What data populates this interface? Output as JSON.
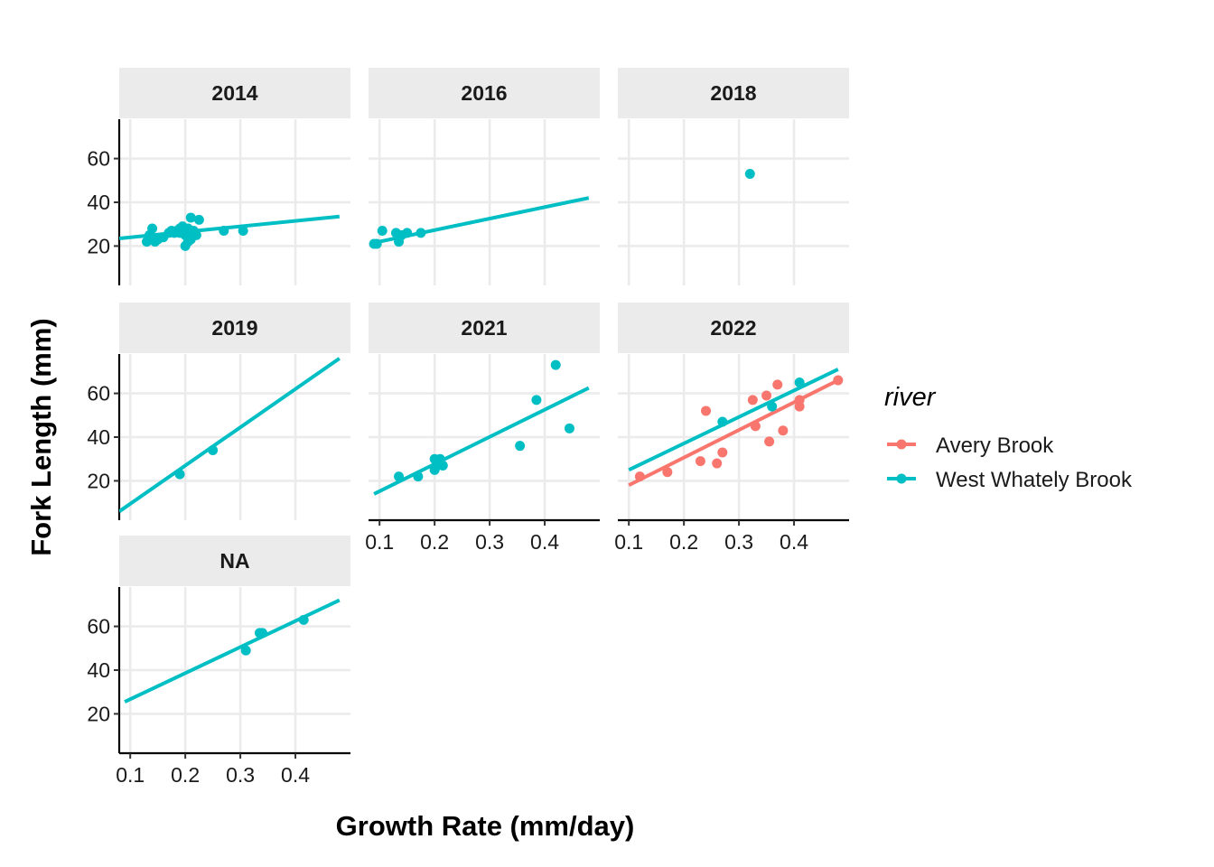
{
  "chart_data": {
    "type": "scatter",
    "xlabel": "Growth Rate (mm/day)",
    "ylabel": "Fork Length (mm)",
    "xlim": [
      0.08,
      0.5
    ],
    "ylim": [
      2,
      78
    ],
    "xticks": [
      0.1,
      0.2,
      0.3,
      0.4
    ],
    "xtick_labels": [
      "0.1",
      "0.2",
      "0.3",
      "0.4"
    ],
    "yticks": [
      20,
      40,
      60
    ],
    "ytick_labels": [
      "20",
      "40",
      "60"
    ],
    "grid": true,
    "colors": {
      "Avery Brook": "#F8766D",
      "West Whately Brook": "#00BFC4"
    },
    "legend": {
      "title": "river",
      "position": "right",
      "entries": [
        "Avery Brook",
        "West Whately Brook"
      ]
    },
    "panels": [
      {
        "label": "2014",
        "series": [
          {
            "name": "West Whately Brook",
            "points": [
              [
                0.13,
                22
              ],
              [
                0.135,
                25
              ],
              [
                0.14,
                28
              ],
              [
                0.14,
                23
              ],
              [
                0.145,
                22
              ],
              [
                0.15,
                23
              ],
              [
                0.16,
                24
              ],
              [
                0.17,
                26
              ],
              [
                0.175,
                27
              ],
              [
                0.18,
                26
              ],
              [
                0.185,
                27
              ],
              [
                0.19,
                28
              ],
              [
                0.19,
                26
              ],
              [
                0.195,
                29
              ],
              [
                0.2,
                25
              ],
              [
                0.2,
                20
              ],
              [
                0.205,
                22
              ],
              [
                0.205,
                28
              ],
              [
                0.21,
                23
              ],
              [
                0.21,
                33
              ],
              [
                0.215,
                27
              ],
              [
                0.22,
                25
              ],
              [
                0.225,
                32
              ],
              [
                0.27,
                27
              ],
              [
                0.305,
                27
              ]
            ],
            "fit": [
              [
                0.08,
                23.5
              ],
              [
                0.48,
                33.5
              ]
            ]
          }
        ]
      },
      {
        "label": "2016",
        "series": [
          {
            "name": "West Whately Brook",
            "points": [
              [
                0.09,
                21
              ],
              [
                0.095,
                21
              ],
              [
                0.105,
                27
              ],
              [
                0.13,
                26
              ],
              [
                0.135,
                22
              ],
              [
                0.14,
                25
              ],
              [
                0.15,
                26
              ],
              [
                0.175,
                26
              ]
            ],
            "fit": [
              [
                0.09,
                21.5
              ],
              [
                0.48,
                42
              ]
            ]
          }
        ]
      },
      {
        "label": "2018",
        "series": [
          {
            "name": "West Whately Brook",
            "points": [
              [
                0.32,
                53
              ]
            ],
            "fit": []
          }
        ]
      },
      {
        "label": "2019",
        "series": [
          {
            "name": "West Whately Brook",
            "points": [
              [
                0.19,
                23
              ],
              [
                0.25,
                34
              ]
            ],
            "fit": [
              [
                0.08,
                6
              ],
              [
                0.48,
                76
              ]
            ]
          }
        ]
      },
      {
        "label": "2021",
        "series": [
          {
            "name": "West Whately Brook",
            "points": [
              [
                0.135,
                22
              ],
              [
                0.17,
                22
              ],
              [
                0.2,
                25
              ],
              [
                0.2,
                30
              ],
              [
                0.205,
                27
              ],
              [
                0.21,
                30
              ],
              [
                0.215,
                27
              ],
              [
                0.355,
                36
              ],
              [
                0.385,
                57
              ],
              [
                0.42,
                73
              ],
              [
                0.445,
                44
              ]
            ],
            "fit": [
              [
                0.09,
                14
              ],
              [
                0.48,
                62.5
              ]
            ]
          }
        ]
      },
      {
        "label": "2022",
        "series": [
          {
            "name": "Avery Brook",
            "points": [
              [
                0.12,
                22
              ],
              [
                0.17,
                24
              ],
              [
                0.23,
                29
              ],
              [
                0.24,
                52
              ],
              [
                0.26,
                28
              ],
              [
                0.27,
                33
              ],
              [
                0.325,
                57
              ],
              [
                0.33,
                45
              ],
              [
                0.35,
                59
              ],
              [
                0.355,
                38
              ],
              [
                0.37,
                64
              ],
              [
                0.38,
                43
              ],
              [
                0.41,
                54
              ],
              [
                0.41,
                57
              ],
              [
                0.48,
                66
              ]
            ],
            "fit": [
              [
                0.1,
                18
              ],
              [
                0.48,
                66
              ]
            ]
          },
          {
            "name": "West Whately Brook",
            "points": [
              [
                0.27,
                47
              ],
              [
                0.36,
                54
              ],
              [
                0.41,
                65
              ]
            ],
            "fit": [
              [
                0.1,
                25
              ],
              [
                0.48,
                71
              ]
            ]
          }
        ]
      },
      {
        "label": "NA",
        "series": [
          {
            "name": "West Whately Brook",
            "points": [
              [
                0.31,
                49
              ],
              [
                0.335,
                57
              ],
              [
                0.34,
                57
              ],
              [
                0.415,
                63
              ]
            ],
            "fit": [
              [
                0.09,
                25.5
              ],
              [
                0.48,
                72
              ]
            ]
          }
        ]
      }
    ]
  }
}
